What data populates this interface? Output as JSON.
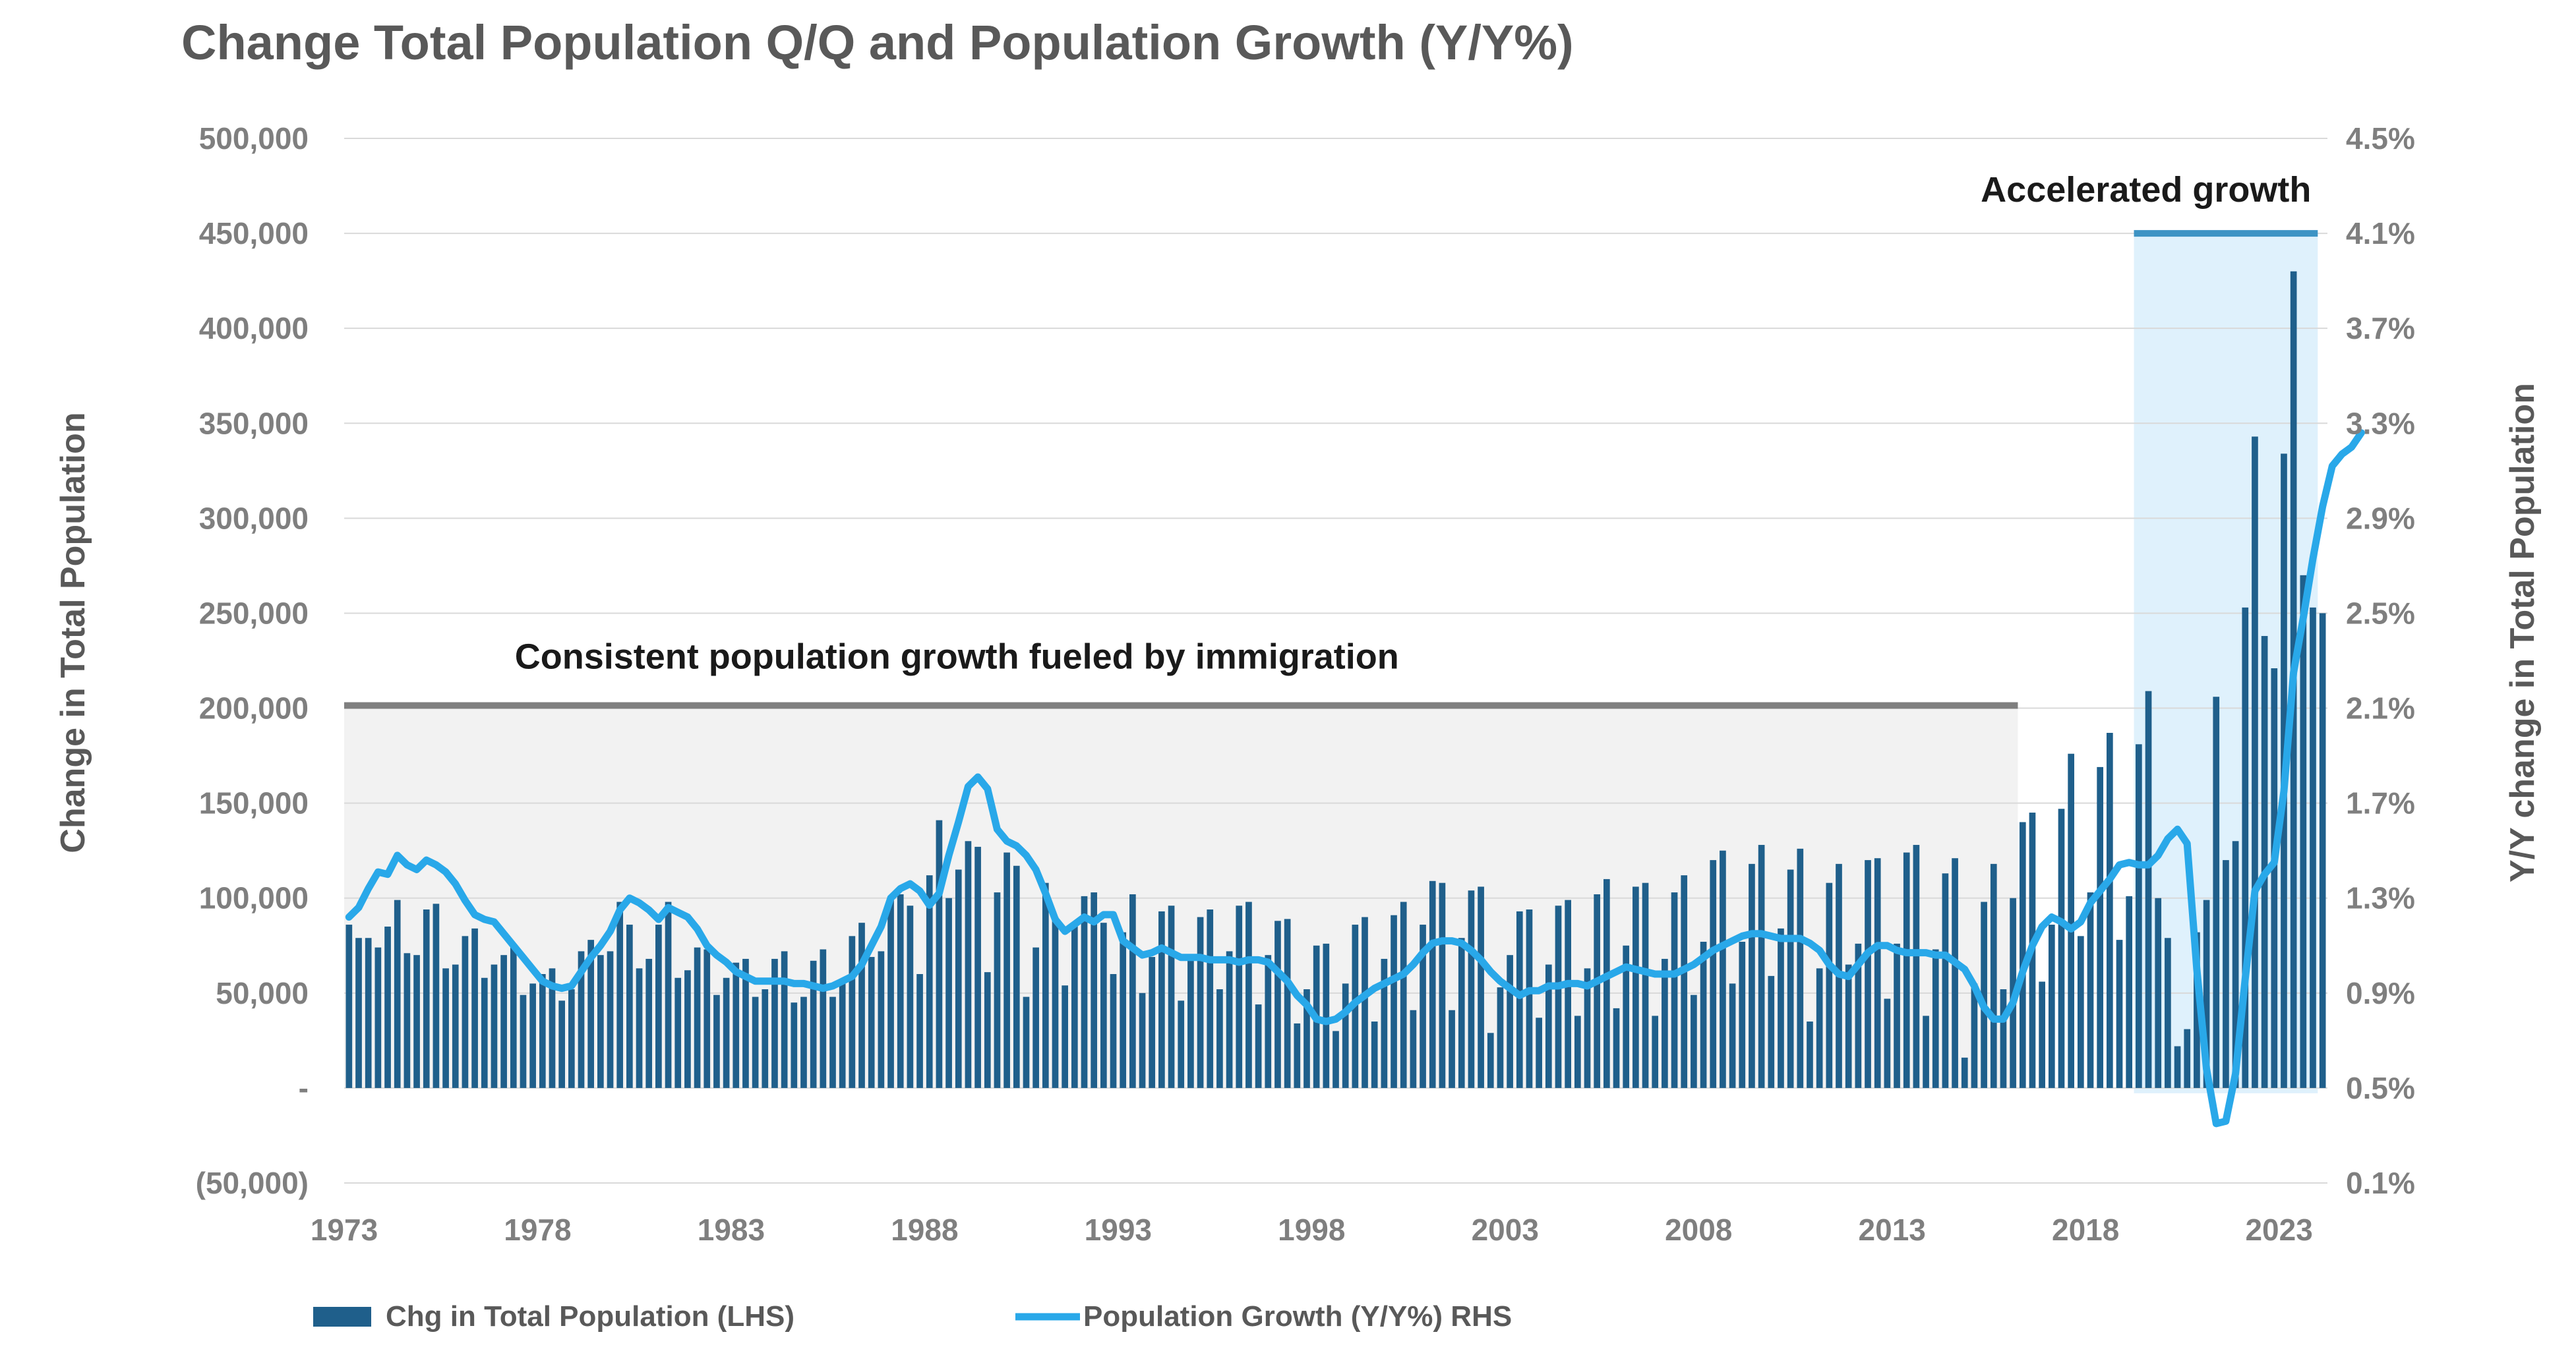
{
  "chart_data": {
    "type": "bar+line",
    "title": "Change Total Population Q/Q and Population Growth (Y/Y%)",
    "ylabel_left": "Change in Total Population",
    "ylabel_right": "Y/Y change in Total Population",
    "ylim_left": [
      -50000,
      500000
    ],
    "ylim_right": [
      0.1,
      4.5
    ],
    "left_ticks": [
      "500,000",
      "450,000",
      "400,000",
      "350,000",
      "300,000",
      "250,000",
      "200,000",
      "150,000",
      "100,000",
      "50,000",
      "-",
      "(50,000)"
    ],
    "right_ticks": [
      "4.5%",
      "4.1%",
      "3.7%",
      "3.3%",
      "2.9%",
      "2.5%",
      "2.1%",
      "1.7%",
      "1.3%",
      "0.9%",
      "0.5%",
      "0.1%"
    ],
    "x_ticks": [
      "1973",
      "1978",
      "1983",
      "1988",
      "1993",
      "1998",
      "2003",
      "2008",
      "2013",
      "2018",
      "2023"
    ],
    "grid": "horizontal",
    "legend_position": "bottom",
    "colors": {
      "bars": "#1f5f8b",
      "line": "#29a8e9",
      "span_gray": "#7f7f7f",
      "span_blue": "#3d93c4",
      "shade_gray": "#f2f2f2",
      "shade_blue": "#dff1fc"
    },
    "annotations": [
      {
        "text": "Consistent population growth fueled by immigration",
        "start": 1973.0,
        "end": 2016.25
      },
      {
        "text": "Accelerated growth",
        "start": 2019.25,
        "end": 2024.0
      }
    ],
    "series": [
      {
        "name": "Chg in Total Population (LHS)",
        "type": "bar",
        "start_year": 1973,
        "frequency": "quarterly",
        "values": [
          86000,
          79000,
          79000,
          74000,
          85000,
          99000,
          71000,
          70000,
          94000,
          97000,
          63000,
          65000,
          80000,
          84000,
          58000,
          65000,
          70000,
          75000,
          49000,
          55000,
          60000,
          63000,
          46000,
          52000,
          72000,
          78000,
          70000,
          72000,
          98000,
          86000,
          63000,
          68000,
          86000,
          98000,
          58000,
          62000,
          74000,
          73000,
          49000,
          58000,
          66000,
          68000,
          48000,
          52000,
          68000,
          72000,
          45000,
          48000,
          67000,
          73000,
          48000,
          55000,
          80000,
          87000,
          69000,
          72000,
          101000,
          102000,
          96000,
          60000,
          112000,
          141000,
          100000,
          115000,
          130000,
          127000,
          61000,
          103000,
          124000,
          117000,
          48000,
          74000,
          108000,
          90000,
          54000,
          87000,
          101000,
          103000,
          87000,
          60000,
          82000,
          102000,
          50000,
          69000,
          93000,
          96000,
          46000,
          70000,
          90000,
          94000,
          52000,
          72000,
          96000,
          98000,
          44000,
          70000,
          88000,
          89000,
          34000,
          52000,
          75000,
          76000,
          30000,
          55000,
          86000,
          90000,
          35000,
          68000,
          91000,
          98000,
          41000,
          86000,
          109000,
          108000,
          41000,
          79000,
          104000,
          106000,
          29000,
          53000,
          70000,
          93000,
          94000,
          37000,
          65000,
          96000,
          99000,
          38000,
          63000,
          102000,
          110000,
          42000,
          75000,
          106000,
          108000,
          38000,
          68000,
          103000,
          112000,
          49000,
          77000,
          120000,
          125000,
          55000,
          77000,
          118000,
          128000,
          59000,
          84000,
          115000,
          126000,
          35000,
          63000,
          108000,
          118000,
          65000,
          76000,
          120000,
          121000,
          47000,
          76000,
          124000,
          128000,
          38000,
          73000,
          113000,
          121000,
          16000,
          55000,
          98000,
          118000,
          52000,
          100000,
          140000,
          145000,
          56000,
          86000,
          147000,
          176000,
          80000,
          103000,
          169000,
          187000,
          78000,
          101000,
          181000,
          209000,
          100000,
          79000,
          22000,
          31000,
          82000,
          99000,
          206000,
          120000,
          130000,
          253000,
          343000,
          238000,
          221000,
          334000,
          430000,
          270000,
          253000,
          250000
        ]
      },
      {
        "name": "Population Growth (Y/Y%) RHS",
        "type": "line",
        "start_year": 1973,
        "frequency": "quarterly",
        "values": [
          1.22,
          1.26,
          1.34,
          1.41,
          1.4,
          1.48,
          1.44,
          1.42,
          1.46,
          1.44,
          1.41,
          1.36,
          1.29,
          1.23,
          1.21,
          1.2,
          1.15,
          1.1,
          1.05,
          1.0,
          0.95,
          0.93,
          0.92,
          0.93,
          0.99,
          1.05,
          1.1,
          1.16,
          1.25,
          1.3,
          1.28,
          1.25,
          1.21,
          1.26,
          1.24,
          1.22,
          1.17,
          1.1,
          1.06,
          1.03,
          0.99,
          0.97,
          0.95,
          0.95,
          0.95,
          0.95,
          0.94,
          0.94,
          0.93,
          0.92,
          0.93,
          0.95,
          0.97,
          1.02,
          1.1,
          1.18,
          1.3,
          1.34,
          1.36,
          1.33,
          1.27,
          1.32,
          1.48,
          1.62,
          1.77,
          1.81,
          1.76,
          1.59,
          1.54,
          1.52,
          1.48,
          1.42,
          1.32,
          1.21,
          1.16,
          1.19,
          1.22,
          1.2,
          1.23,
          1.23,
          1.12,
          1.09,
          1.06,
          1.07,
          1.09,
          1.07,
          1.05,
          1.05,
          1.05,
          1.04,
          1.04,
          1.04,
          1.03,
          1.04,
          1.04,
          1.03,
          0.99,
          0.95,
          0.89,
          0.85,
          0.79,
          0.78,
          0.79,
          0.82,
          0.86,
          0.89,
          0.92,
          0.94,
          0.96,
          0.98,
          1.02,
          1.07,
          1.11,
          1.12,
          1.12,
          1.11,
          1.08,
          1.04,
          0.99,
          0.95,
          0.92,
          0.89,
          0.91,
          0.91,
          0.93,
          0.93,
          0.94,
          0.94,
          0.93,
          0.95,
          0.97,
          0.99,
          1.01,
          1.0,
          0.99,
          0.98,
          0.98,
          0.98,
          1.0,
          1.02,
          1.05,
          1.08,
          1.1,
          1.12,
          1.14,
          1.15,
          1.15,
          1.14,
          1.13,
          1.13,
          1.13,
          1.11,
          1.08,
          1.02,
          0.98,
          0.97,
          1.02,
          1.07,
          1.1,
          1.1,
          1.08,
          1.07,
          1.07,
          1.07,
          1.06,
          1.06,
          1.03,
          1.0,
          0.93,
          0.84,
          0.79,
          0.79,
          0.86,
          0.99,
          1.1,
          1.18,
          1.22,
          1.2,
          1.17,
          1.2,
          1.28,
          1.33,
          1.38,
          1.44,
          1.45,
          1.44,
          1.44,
          1.48,
          1.55,
          1.59,
          1.53,
          1.0,
          0.58,
          0.35,
          0.36,
          0.56,
          0.96,
          1.33,
          1.4,
          1.45,
          1.75,
          2.25,
          2.48,
          2.73,
          2.95,
          3.12,
          3.17,
          3.2,
          3.26
        ]
      }
    ]
  }
}
